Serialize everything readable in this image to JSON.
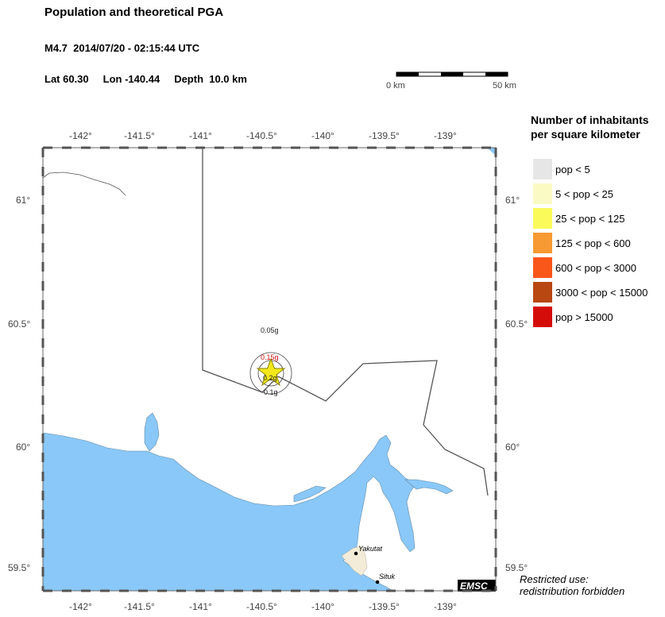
{
  "header": {
    "title": "Population and theoretical PGA",
    "event": "M4.7  2014/07/20 - 02:15:44 UTC",
    "lat": "Lat 60.30",
    "lon": "Lon -140.44",
    "depth": "Depth  10.0 km"
  },
  "scale_bar": {
    "left_label": "0 km",
    "right_label": "50 km"
  },
  "axes": {
    "top_lon_ticks": [
      "-142°",
      "-141.5°",
      "-141°",
      "-140.5°",
      "-140°",
      "-139.5°",
      "-139°"
    ],
    "bottom_lon_ticks": [
      "-142°",
      "-141.5°",
      "-141°",
      "-140.5°",
      "-140°",
      "-139.5°",
      "-139°"
    ],
    "left_lat_ticks": [
      "61°",
      "60.5°",
      "60°",
      "59.5°"
    ],
    "right_lat_ticks": [
      "61°",
      "60.5°",
      "60°",
      "59.5°"
    ]
  },
  "pga_labels": {
    "outer": "0.05g",
    "middle": "0.15g",
    "inner": "0.2g",
    "lower": "0.1g"
  },
  "towns": [
    "Yakutat",
    "Situk"
  ],
  "badge": "EMSC",
  "legend": {
    "title_line1": "Number of inhabitants",
    "title_line2": "per square kilometer",
    "items": [
      {
        "label": "pop < 5",
        "color": "#e6e6e6"
      },
      {
        "label": "5 < pop < 25",
        "color": "#fafac4"
      },
      {
        "label": "25 < pop < 125",
        "color": "#fafa5a"
      },
      {
        "label": "125 < pop < 600",
        "color": "#f79a33"
      },
      {
        "label": "600 < pop < 3000",
        "color": "#f9561a"
      },
      {
        "label": "3000 < pop < 15000",
        "color": "#b94712"
      },
      {
        "label": "pop > 15000",
        "color": "#d40d0a"
      }
    ]
  },
  "colors": {
    "water": "#89c8f8",
    "border": "#555555",
    "epicenter": "#f4e81c"
  },
  "notice": {
    "line1": "Restricted use:",
    "line2": "redistribution forbidden"
  }
}
